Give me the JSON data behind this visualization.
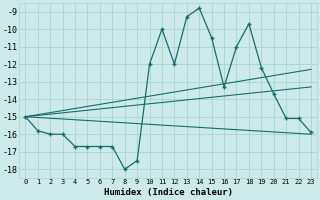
{
  "xlabel": "Humidex (Indice chaleur)",
  "bg_color": "#cceaea",
  "grid_color": "#a8d4d4",
  "line_color": "#1a6b6b",
  "xlim": [
    -0.5,
    23.5
  ],
  "ylim": [
    -18.5,
    -8.5
  ],
  "xticks": [
    0,
    1,
    2,
    3,
    4,
    5,
    6,
    7,
    8,
    9,
    10,
    11,
    12,
    13,
    14,
    15,
    16,
    17,
    18,
    19,
    20,
    21,
    22,
    23
  ],
  "yticks": [
    -18,
    -17,
    -16,
    -15,
    -14,
    -13,
    -12,
    -11,
    -10,
    -9
  ],
  "main_data_x": [
    0,
    1,
    2,
    3,
    4,
    5,
    6,
    7,
    8,
    9,
    10,
    11,
    12,
    13,
    14,
    15,
    16,
    17,
    18,
    19,
    20,
    21,
    22,
    23
  ],
  "main_data_y": [
    -15.0,
    -15.8,
    -16.0,
    -16.0,
    -16.7,
    -16.7,
    -16.7,
    -16.7,
    -18.0,
    -17.5,
    -12.0,
    -10.0,
    -12.0,
    -9.3,
    -8.8,
    -10.5,
    -13.3,
    -11.0,
    -9.7,
    -12.2,
    -13.7,
    -15.1,
    -15.1,
    -15.9
  ],
  "straight_lines": [
    {
      "x": [
        0,
        23
      ],
      "y": [
        -15.0,
        -16.0
      ]
    },
    {
      "x": [
        0,
        23
      ],
      "y": [
        -15.0,
        -13.3
      ]
    },
    {
      "x": [
        0,
        23
      ],
      "y": [
        -15.0,
        -12.3
      ]
    }
  ]
}
